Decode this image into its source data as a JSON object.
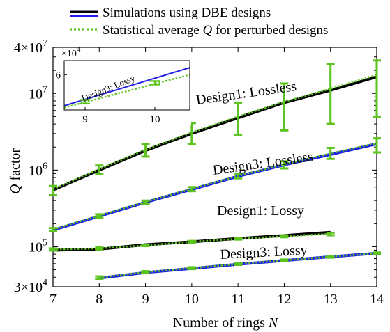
{
  "chart_data": [
    {
      "type": "line",
      "xlabel": "Number of rings",
      "xlabel_var": "N",
      "ylabel_var": "Q",
      "ylabel": "factor",
      "yscale": "log",
      "xlim": [
        7,
        14
      ],
      "ylim": [
        30000,
        40000000
      ],
      "x_ticks": [
        "7",
        "8",
        "9",
        "10",
        "11",
        "12",
        "13",
        "14"
      ],
      "y_ticks": [
        {
          "value": 30000,
          "mant": "3×10",
          "exp": "4"
        },
        {
          "value": 100000,
          "mant": "10",
          "exp": "5"
        },
        {
          "value": 1000000,
          "mant": "10",
          "exp": "6"
        },
        {
          "value": 10000000,
          "mant": "10",
          "exp": "7"
        },
        {
          "value": 40000000,
          "mant": "4×10",
          "exp": "7"
        }
      ],
      "legend": {
        "position": "top",
        "entries": [
          {
            "label": "Simulations using DBE designs",
            "style": "solid",
            "colors": [
              "#000000",
              "#1f1fe6"
            ]
          },
          {
            "label_pre": "Statistical average ",
            "label_var": "Q",
            "label_post": " for perturbed designs",
            "style": "dotted",
            "colors": [
              "#5bc21e"
            ]
          }
        ]
      },
      "series": [
        {
          "name": "Design1: Lossless",
          "color": "#000000",
          "label_color": "#000000",
          "x": [
            7,
            8,
            9,
            10,
            11,
            12,
            13,
            14
          ],
          "sim": [
            550000,
            1000000,
            1800000,
            3000000,
            4800000,
            7600000,
            11000000,
            16500000
          ],
          "avg": [
            560000,
            1030000,
            1850000,
            3100000,
            5000000,
            7800000,
            11500000,
            17500000
          ],
          "err_low": [
            470000,
            880000,
            1500000,
            2200000,
            2900000,
            3300000,
            4000000,
            5000000
          ],
          "err_high": [
            620000,
            1150000,
            2200000,
            4100000,
            7600000,
            13500000,
            24000000,
            27000000
          ]
        },
        {
          "name": "Design3: Lossless",
          "color": "#1f1fe6",
          "label_color": "#1f1fe6",
          "x": [
            7,
            8,
            9,
            10,
            11,
            12,
            13,
            14
          ],
          "sim": [
            165000,
            250000,
            380000,
            560000,
            830000,
            1170000,
            1600000,
            2200000
          ],
          "avg": [
            168000,
            255000,
            385000,
            570000,
            840000,
            1180000,
            1650000,
            2250000
          ],
          "err_low": [
            160000,
            240000,
            365000,
            530000,
            780000,
            1050000,
            1400000,
            1700000
          ],
          "err_high": [
            175000,
            265000,
            400000,
            600000,
            900000,
            1300000,
            1950000,
            2600000
          ]
        },
        {
          "name": "Design1: Lossy",
          "color": "#000000",
          "label_color": "#000000",
          "x": [
            7,
            8,
            9,
            10,
            11,
            12,
            13
          ],
          "sim": [
            90000,
            93000,
            106000,
            116000,
            128000,
            140000,
            154000
          ],
          "avg": [
            92000,
            95000,
            104000,
            116000,
            127000,
            137000,
            147000
          ],
          "err_low": [
            89000,
            92000,
            102000,
            113000,
            124000,
            133000,
            141000
          ],
          "err_high": [
            95000,
            98000,
            106000,
            119000,
            130000,
            141000,
            152000
          ]
        },
        {
          "name": "Design3: Lossy",
          "color": "#1f1fe6",
          "label_color": "#1f1fe6",
          "x": [
            8,
            9,
            10,
            11,
            12,
            13,
            14
          ],
          "sim": [
            39000,
            46000,
            52000,
            59000,
            66000,
            74000,
            82000
          ],
          "avg": [
            39500,
            46500,
            52500,
            59500,
            66500,
            74000,
            82000
          ],
          "err_low": [
            38000,
            45000,
            51000,
            58000,
            65000,
            72000,
            80000
          ],
          "err_high": [
            41000,
            48000,
            54000,
            61000,
            68000,
            76000,
            84000
          ]
        }
      ]
    },
    {
      "type": "line",
      "inset": true,
      "xlim": [
        8.7,
        10.5
      ],
      "ylim": [
        45000,
        66000
      ],
      "exponent_label_mant": "×10",
      "exponent_label_exp": "4",
      "x_ticks": [
        "9",
        "10"
      ],
      "y_ticks": [
        {
          "value": 60000,
          "label": "6"
        }
      ],
      "series": [
        {
          "name": "Design3: Lossy",
          "color": "#1f1fe6",
          "label_color": "#1f1fe6",
          "sim_x": [
            8.7,
            10.5
          ],
          "sim": [
            46800,
            63000
          ],
          "avg_x": [
            8.7,
            10.5
          ],
          "avg": [
            46000,
            60000
          ],
          "err_x": [
            9,
            10
          ],
          "err_mid": [
            48500,
            56500
          ],
          "err_low": [
            47700,
            55800
          ],
          "err_high": [
            49300,
            57300
          ]
        }
      ]
    }
  ]
}
